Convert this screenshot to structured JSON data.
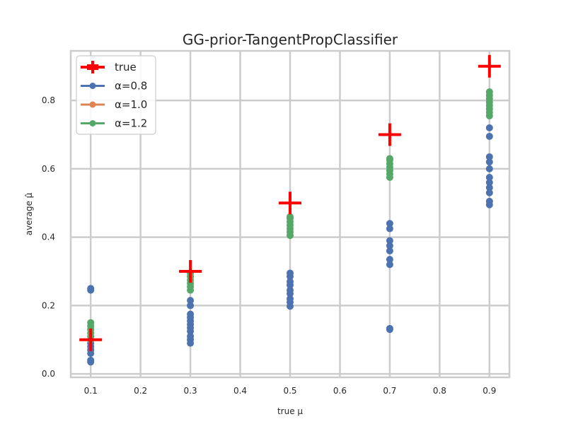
{
  "chart_data": {
    "type": "scatter",
    "title": "GG-prior-TangentPropClassifier",
    "xlabel": "true μ",
    "ylabel": "average μ̂",
    "xlim": [
      0.06,
      0.94
    ],
    "ylim": [
      -0.01,
      0.945
    ],
    "xticks": [
      0.1,
      0.2,
      0.3,
      0.4,
      0.5,
      0.6,
      0.7,
      0.8,
      0.9
    ],
    "xtick_labels": [
      "0.1",
      "0.2",
      "0.3",
      "0.4",
      "0.5",
      "0.6",
      "0.7",
      "0.8",
      "0.9"
    ],
    "yticks": [
      0.0,
      0.2,
      0.4,
      0.6,
      0.8
    ],
    "ytick_labels": [
      "0.0",
      "0.2",
      "0.4",
      "0.6",
      "0.8"
    ],
    "grid": true,
    "legend_position": "top-left",
    "true_series": {
      "name": "true",
      "color": "#ff0000",
      "x": [
        0.1,
        0.3,
        0.5,
        0.7,
        0.9
      ],
      "y": [
        0.1,
        0.3,
        0.5,
        0.7,
        0.9
      ]
    },
    "series": [
      {
        "name": "α=0.8",
        "color": "#4c72b0",
        "points": [
          {
            "x": 0.1,
            "y": 0.035
          },
          {
            "x": 0.1,
            "y": 0.04
          },
          {
            "x": 0.1,
            "y": 0.06
          },
          {
            "x": 0.1,
            "y": 0.07
          },
          {
            "x": 0.1,
            "y": 0.08
          },
          {
            "x": 0.1,
            "y": 0.09
          },
          {
            "x": 0.1,
            "y": 0.245
          },
          {
            "x": 0.1,
            "y": 0.25
          },
          {
            "x": 0.3,
            "y": 0.09
          },
          {
            "x": 0.3,
            "y": 0.1
          },
          {
            "x": 0.3,
            "y": 0.11
          },
          {
            "x": 0.3,
            "y": 0.125
          },
          {
            "x": 0.3,
            "y": 0.135
          },
          {
            "x": 0.3,
            "y": 0.145
          },
          {
            "x": 0.3,
            "y": 0.155
          },
          {
            "x": 0.3,
            "y": 0.165
          },
          {
            "x": 0.3,
            "y": 0.175
          },
          {
            "x": 0.3,
            "y": 0.2
          },
          {
            "x": 0.3,
            "y": 0.215
          },
          {
            "x": 0.5,
            "y": 0.198
          },
          {
            "x": 0.5,
            "y": 0.21
          },
          {
            "x": 0.5,
            "y": 0.22
          },
          {
            "x": 0.5,
            "y": 0.235
          },
          {
            "x": 0.5,
            "y": 0.245
          },
          {
            "x": 0.5,
            "y": 0.26
          },
          {
            "x": 0.5,
            "y": 0.27
          },
          {
            "x": 0.5,
            "y": 0.285
          },
          {
            "x": 0.5,
            "y": 0.295
          },
          {
            "x": 0.7,
            "y": 0.13
          },
          {
            "x": 0.7,
            "y": 0.133
          },
          {
            "x": 0.7,
            "y": 0.32
          },
          {
            "x": 0.7,
            "y": 0.335
          },
          {
            "x": 0.7,
            "y": 0.36
          },
          {
            "x": 0.7,
            "y": 0.375
          },
          {
            "x": 0.7,
            "y": 0.39
          },
          {
            "x": 0.7,
            "y": 0.425
          },
          {
            "x": 0.7,
            "y": 0.44
          },
          {
            "x": 0.9,
            "y": 0.495
          },
          {
            "x": 0.9,
            "y": 0.505
          },
          {
            "x": 0.9,
            "y": 0.53
          },
          {
            "x": 0.9,
            "y": 0.545
          },
          {
            "x": 0.9,
            "y": 0.56
          },
          {
            "x": 0.9,
            "y": 0.575
          },
          {
            "x": 0.9,
            "y": 0.6
          },
          {
            "x": 0.9,
            "y": 0.62
          },
          {
            "x": 0.9,
            "y": 0.635
          },
          {
            "x": 0.9,
            "y": 0.695
          },
          {
            "x": 0.9,
            "y": 0.72
          }
        ]
      },
      {
        "name": "α=1.0",
        "color": "#dd8452",
        "points": []
      },
      {
        "name": "α=1.2",
        "color": "#55a868",
        "points": [
          {
            "x": 0.1,
            "y": 0.1
          },
          {
            "x": 0.1,
            "y": 0.11
          },
          {
            "x": 0.1,
            "y": 0.12
          },
          {
            "x": 0.1,
            "y": 0.13
          },
          {
            "x": 0.1,
            "y": 0.14
          },
          {
            "x": 0.1,
            "y": 0.15
          },
          {
            "x": 0.3,
            "y": 0.245
          },
          {
            "x": 0.3,
            "y": 0.255
          },
          {
            "x": 0.3,
            "y": 0.265
          },
          {
            "x": 0.3,
            "y": 0.275
          },
          {
            "x": 0.3,
            "y": 0.285
          },
          {
            "x": 0.3,
            "y": 0.295
          },
          {
            "x": 0.5,
            "y": 0.405
          },
          {
            "x": 0.5,
            "y": 0.415
          },
          {
            "x": 0.5,
            "y": 0.425
          },
          {
            "x": 0.5,
            "y": 0.435
          },
          {
            "x": 0.5,
            "y": 0.445
          },
          {
            "x": 0.5,
            "y": 0.455
          },
          {
            "x": 0.5,
            "y": 0.46
          },
          {
            "x": 0.7,
            "y": 0.575
          },
          {
            "x": 0.7,
            "y": 0.585
          },
          {
            "x": 0.7,
            "y": 0.595
          },
          {
            "x": 0.7,
            "y": 0.605
          },
          {
            "x": 0.7,
            "y": 0.615
          },
          {
            "x": 0.7,
            "y": 0.625
          },
          {
            "x": 0.7,
            "y": 0.63
          },
          {
            "x": 0.9,
            "y": 0.755
          },
          {
            "x": 0.9,
            "y": 0.765
          },
          {
            "x": 0.9,
            "y": 0.775
          },
          {
            "x": 0.9,
            "y": 0.785
          },
          {
            "x": 0.9,
            "y": 0.795
          },
          {
            "x": 0.9,
            "y": 0.805
          },
          {
            "x": 0.9,
            "y": 0.815
          },
          {
            "x": 0.9,
            "y": 0.825
          }
        ]
      }
    ]
  }
}
